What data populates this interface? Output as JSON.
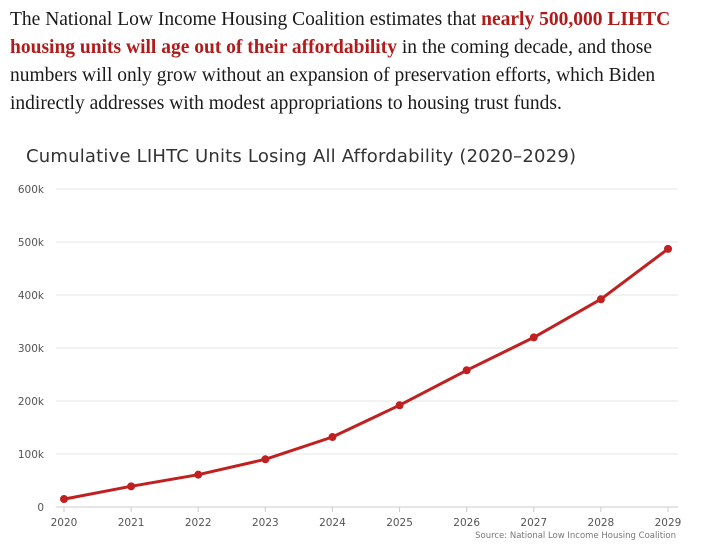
{
  "article": {
    "text_before": "The National Low Income Housing Coalition estimates that ",
    "highlight": "nearly 500,000 LIHTC housing units will age out of their affordability",
    "text_after": " in the coming decade, and those numbers will only grow without an expansion of preservation efforts, which Biden indirectly addresses with modest appropriations to housing trust funds."
  },
  "chart_data": {
    "type": "line",
    "title": "Cumulative LIHTC Units Losing All Affordability (2020–2029)",
    "x": [
      "2020",
      "2021",
      "2022",
      "2023",
      "2024",
      "2025",
      "2026",
      "2027",
      "2028",
      "2029"
    ],
    "series": [
      {
        "values": [
          15000,
          39000,
          61000,
          90000,
          132000,
          192000,
          258000,
          320000,
          392000,
          487000
        ]
      }
    ],
    "ylim": [
      0,
      600000
    ],
    "yticks": [
      0,
      100000,
      200000,
      300000,
      400000,
      500000,
      600000
    ],
    "ytick_labels": [
      "0",
      "100k",
      "200k",
      "300k",
      "400k",
      "500k",
      "600k"
    ],
    "grid": true,
    "line_color": "#c0201f",
    "source": "Source: National Low Income Housing Coalition"
  }
}
